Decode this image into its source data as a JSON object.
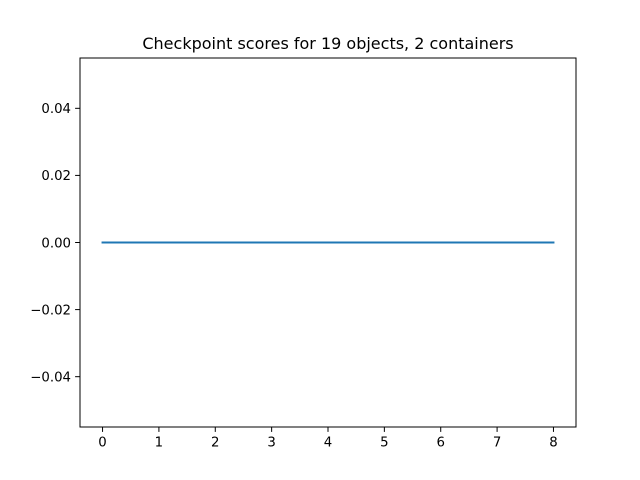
{
  "chart_data": {
    "type": "line",
    "title": "Checkpoint scores for 19 objects, 2 containers",
    "xlabel": "",
    "ylabel": "",
    "xlim": [
      -0.4,
      8.4
    ],
    "ylim": [
      -0.055,
      0.055
    ],
    "grid": false,
    "x_ticks": [
      0,
      1,
      2,
      3,
      4,
      5,
      6,
      7,
      8
    ],
    "x_tick_labels": [
      "0",
      "1",
      "2",
      "3",
      "4",
      "5",
      "6",
      "7",
      "8"
    ],
    "y_ticks": [
      -0.04,
      -0.02,
      0.0,
      0.02,
      0.04
    ],
    "y_tick_labels": [
      "−0.04",
      "−0.02",
      "0.00",
      "0.02",
      "0.04"
    ],
    "series": [
      {
        "color": "#1f77b4",
        "x": [
          0,
          1,
          2,
          3,
          4,
          5,
          6,
          7,
          8
        ],
        "values": [
          0,
          0,
          0,
          0,
          0,
          0,
          0,
          0,
          0
        ]
      }
    ]
  }
}
